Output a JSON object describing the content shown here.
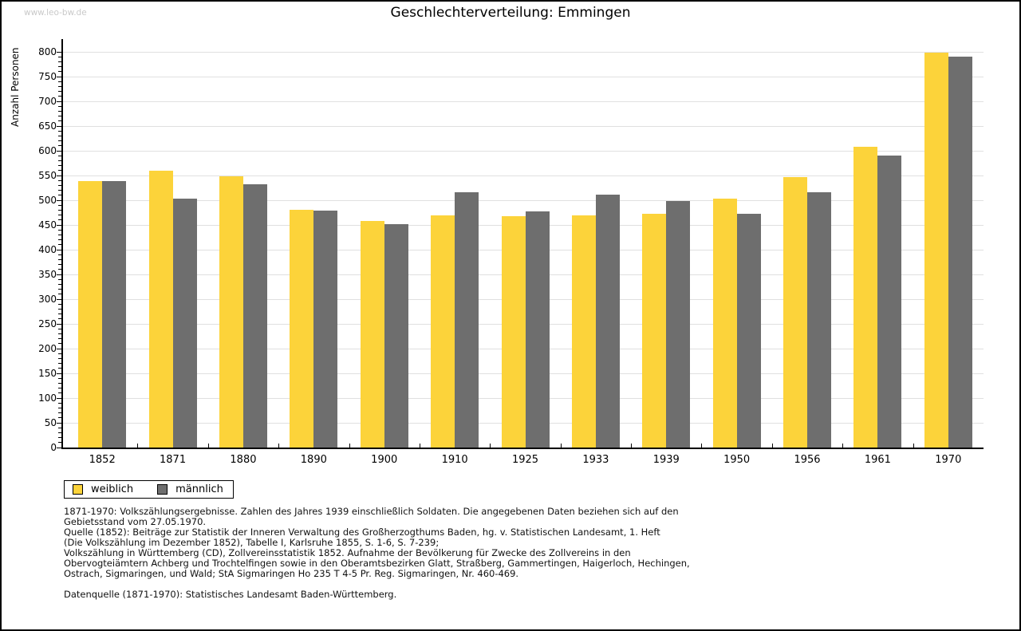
{
  "watermark": "www.leo-bw.de",
  "title": "Geschlechterverteilung: Emmingen",
  "chart_data": {
    "type": "bar",
    "title": "Geschlechterverteilung: Emmingen",
    "xlabel": "",
    "ylabel": "Anzahl Personen",
    "ylim": [
      0,
      800
    ],
    "y_tick_step": 50,
    "y_minor_tick_step": 10,
    "grid": true,
    "gridline_color": "#e0e0e0",
    "legend_position": "bottom-left",
    "categories": [
      "1852",
      "1871",
      "1880",
      "1890",
      "1900",
      "1910",
      "1925",
      "1933",
      "1939",
      "1950",
      "1956",
      "1961",
      "1970"
    ],
    "series": [
      {
        "name": "weiblich",
        "color": "#fcd33a",
        "values": [
          538,
          560,
          549,
          481,
          458,
          470,
          467,
          470,
          473,
          503,
          546,
          608,
          798
        ]
      },
      {
        "name": "männlich",
        "color": "#6e6e6e",
        "values": [
          538,
          504,
          532,
          479,
          452,
          516,
          478,
          511,
          499,
          473,
          516,
          590,
          791
        ]
      }
    ]
  },
  "footer": {
    "lines": [
      "1871-1970: Volkszählungsergebnisse. Zahlen des Jahres 1939 einschließlich Soldaten. Die angegebenen Daten beziehen sich auf den",
      "Gebietsstand vom 27.05.1970.",
      "Quelle (1852): Beiträge zur Statistik der Inneren Verwaltung des Großherzogthums Baden, hg. v. Statistischen Landesamt, 1. Heft",
      "(Die Volkszählung im Dezember 1852), Tabelle I, Karlsruhe 1855, S. 1-6, S. 7-239;",
      "Volkszählung in Württemberg (CD), Zollvereinsstatistik 1852. Aufnahme der Bevölkerung für Zwecke des Zollvereins in den",
      "Obervogteiämtern Achberg und Trochtelfingen sowie in den Oberamtsbezirken Glatt, Straßberg, Gammertingen, Haigerloch, Hechingen,",
      "Ostrach, Sigmaringen, und Wald; StA Sigmaringen Ho 235 T 4-5 Pr. Reg. Sigmaringen, Nr. 460-469."
    ],
    "datasource": "Datenquelle (1871-1970): Statistisches Landesamt Baden-Württemberg."
  }
}
